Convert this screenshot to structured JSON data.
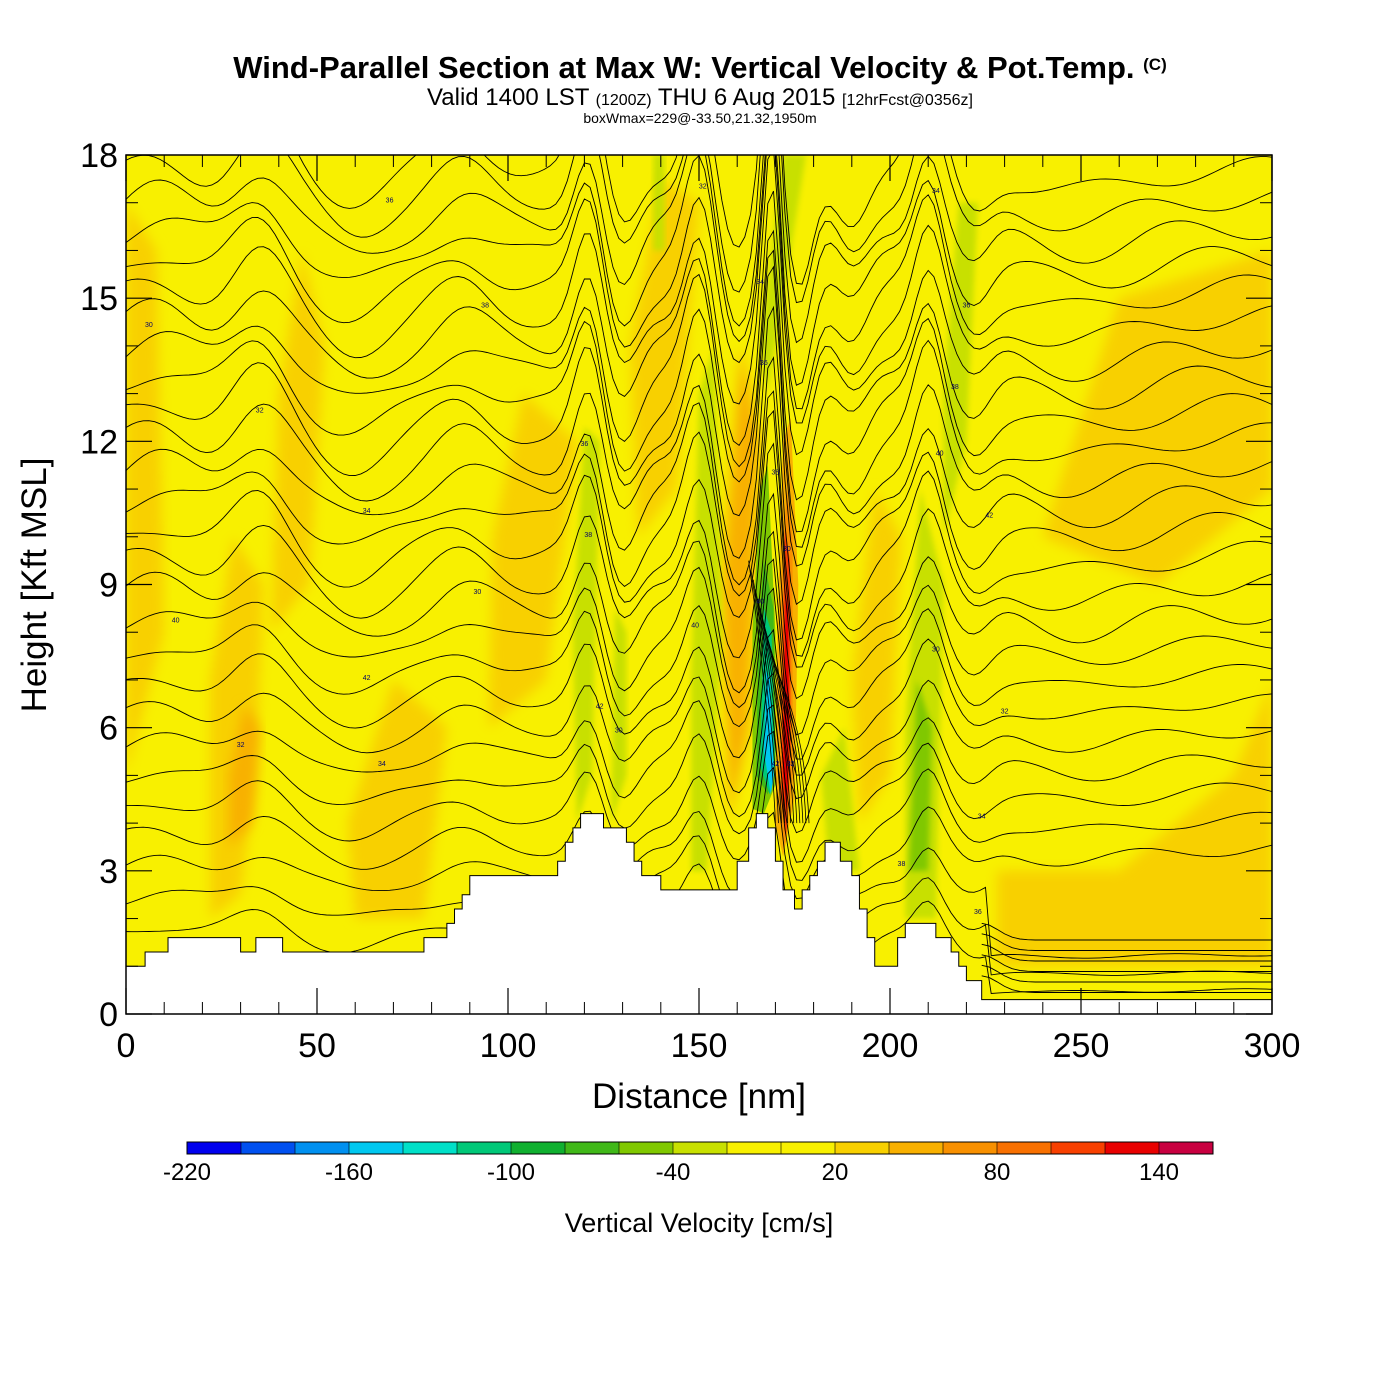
{
  "header": {
    "title": "Wind-Parallel Section at Max W: Vertical Velocity & Pot.Temp.",
    "copyright": "(C)",
    "valid_a": "Valid 1400 LST",
    "valid_zone": "(1200Z)",
    "valid_b": "THU 6 Aug 2015",
    "forecast": "[12hrFcst@0356z]",
    "boxwmax": "boxWmax=229@-33.50,21.32,1950m"
  },
  "chart_data": {
    "type": "heatmap",
    "xlabel": "Distance [nm]",
    "ylabel": "Height [Kft MSL]",
    "xlim": [
      0,
      300
    ],
    "ylim": [
      0,
      18
    ],
    "x_ticks": [
      "0",
      "50",
      "100",
      "150",
      "200",
      "250",
      "300"
    ],
    "y_ticks": [
      "0",
      "3",
      "6",
      "9",
      "12",
      "15",
      "18"
    ],
    "x_tick_values": [
      0,
      50,
      100,
      150,
      200,
      250,
      300
    ],
    "y_tick_values": [
      0,
      3,
      6,
      9,
      12,
      15,
      18
    ],
    "colorbar": {
      "title": "Vertical Velocity [cm/s]",
      "levels": [
        -220,
        -200,
        -180,
        -160,
        -140,
        -120,
        -100,
        -80,
        -60,
        -40,
        -20,
        0,
        20,
        40,
        60,
        80,
        100,
        120,
        140,
        160
      ],
      "labels": [
        "-220",
        "-160",
        "-100",
        "-40",
        "20",
        "80",
        "140"
      ],
      "label_values": [
        -220,
        -160,
        -100,
        -40,
        20,
        80,
        140
      ],
      "colors": [
        "#0000ee",
        "#0050f0",
        "#0090f0",
        "#00c8f0",
        "#00e0c8",
        "#00c878",
        "#10b030",
        "#40b818",
        "#80c800",
        "#c8e000",
        "#f8f000",
        "#f8f000",
        "#f8d000",
        "#f8b000",
        "#f89000",
        "#f87000",
        "#f84000",
        "#e80000",
        "#c80040"
      ]
    },
    "terrain_kft": [
      [
        0,
        1.0
      ],
      [
        5,
        1.0
      ],
      [
        5,
        1.3
      ],
      [
        11,
        1.3
      ],
      [
        11,
        1.6
      ],
      [
        30,
        1.6
      ],
      [
        30,
        1.3
      ],
      [
        34,
        1.3
      ],
      [
        34,
        1.6
      ],
      [
        41,
        1.6
      ],
      [
        41,
        1.3
      ],
      [
        78,
        1.3
      ],
      [
        78,
        1.6
      ],
      [
        84,
        1.6
      ],
      [
        84,
        1.9
      ],
      [
        86,
        1.9
      ],
      [
        86,
        2.2
      ],
      [
        88,
        2.2
      ],
      [
        88,
        2.5
      ],
      [
        90,
        2.5
      ],
      [
        90,
        2.9
      ],
      [
        113,
        2.9
      ],
      [
        113,
        3.2
      ],
      [
        115,
        3.2
      ],
      [
        115,
        3.6
      ],
      [
        117,
        3.6
      ],
      [
        117,
        3.9
      ],
      [
        119,
        3.9
      ],
      [
        119,
        4.2
      ],
      [
        125,
        4.2
      ],
      [
        125,
        3.9
      ],
      [
        131,
        3.9
      ],
      [
        131,
        3.6
      ],
      [
        133,
        3.6
      ],
      [
        133,
        3.2
      ],
      [
        135,
        3.2
      ],
      [
        135,
        2.9
      ],
      [
        140,
        2.9
      ],
      [
        140,
        2.6
      ],
      [
        160,
        2.6
      ],
      [
        160,
        3.2
      ],
      [
        163,
        3.2
      ],
      [
        163,
        3.9
      ],
      [
        165,
        3.9
      ],
      [
        165,
        4.2
      ],
      [
        168,
        4.2
      ],
      [
        168,
        3.9
      ],
      [
        170,
        3.9
      ],
      [
        170,
        3.2
      ],
      [
        172,
        3.2
      ],
      [
        172,
        2.6
      ],
      [
        175,
        2.6
      ],
      [
        175,
        2.2
      ],
      [
        177,
        2.2
      ],
      [
        177,
        2.6
      ],
      [
        179,
        2.6
      ],
      [
        179,
        2.9
      ],
      [
        181,
        2.9
      ],
      [
        181,
        3.2
      ],
      [
        183,
        3.2
      ],
      [
        183,
        3.6
      ],
      [
        187,
        3.6
      ],
      [
        187,
        3.2
      ],
      [
        190,
        3.2
      ],
      [
        190,
        2.9
      ],
      [
        192,
        2.9
      ],
      [
        192,
        2.2
      ],
      [
        194,
        2.2
      ],
      [
        194,
        1.6
      ],
      [
        196,
        1.6
      ],
      [
        196,
        1.0
      ],
      [
        202,
        1.0
      ],
      [
        202,
        1.6
      ],
      [
        204,
        1.6
      ],
      [
        204,
        1.9
      ],
      [
        212,
        1.9
      ],
      [
        212,
        1.6
      ],
      [
        216,
        1.6
      ],
      [
        216,
        1.3
      ],
      [
        218,
        1.3
      ],
      [
        218,
        1.0
      ],
      [
        220,
        1.0
      ],
      [
        220,
        0.7
      ],
      [
        224,
        0.7
      ],
      [
        224,
        0.3
      ],
      [
        300,
        0.3
      ]
    ],
    "theta_label_values": [
      "30",
      "32",
      "34",
      "36",
      "38",
      "40",
      "42"
    ]
  }
}
